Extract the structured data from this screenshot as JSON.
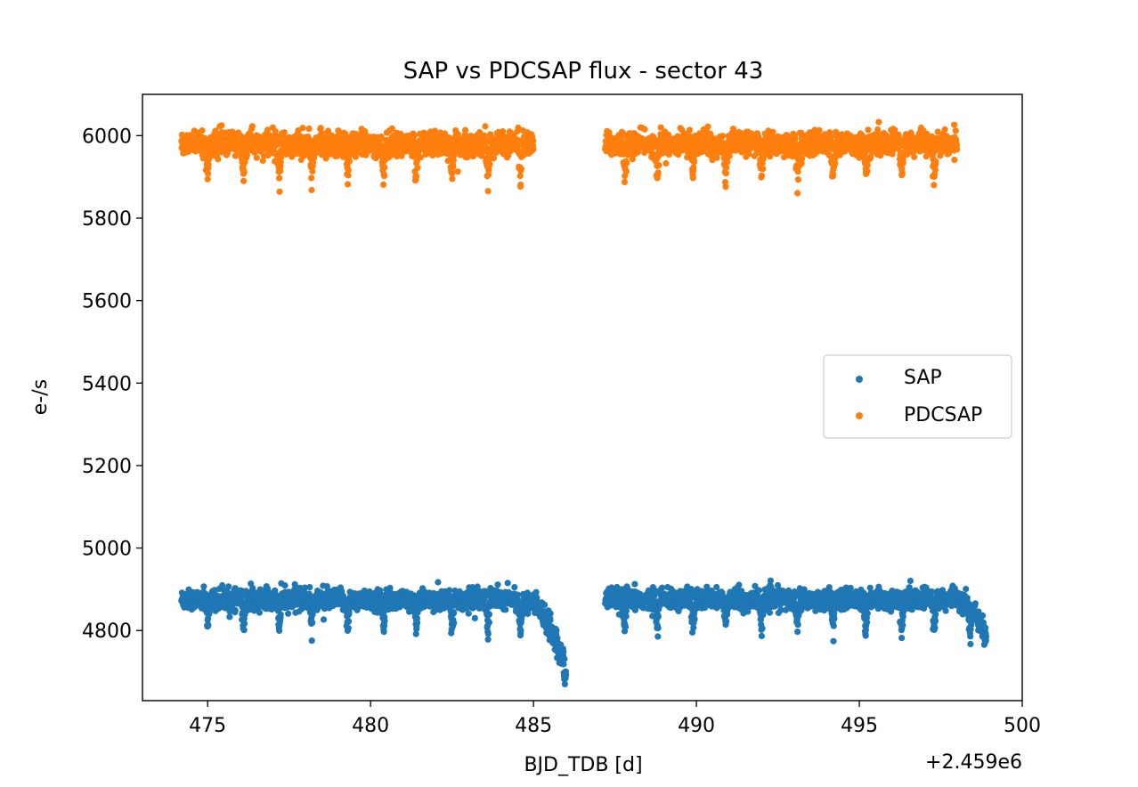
{
  "chart_data": {
    "type": "scatter",
    "title": "SAP vs PDCSAP flux - sector 43",
    "xlabel": "BJD_TDB [d]",
    "ylabel": "e-/s",
    "x_offset_label": "+2.459e6",
    "xlim": [
      473,
      500
    ],
    "ylim": [
      4630,
      6100
    ],
    "x_ticks": [
      475,
      480,
      485,
      490,
      495,
      500
    ],
    "y_ticks": [
      4800,
      5000,
      5200,
      5400,
      5600,
      5800,
      6000
    ],
    "grid": false,
    "legend_position": "center-right",
    "segments": [
      [
        474.2,
        485.0
      ],
      [
        487.2,
        498.0
      ]
    ],
    "series": [
      {
        "name": "SAP",
        "color": "#1f77b4",
        "baseline": 4875,
        "scatter": 12,
        "dip_depth": 85,
        "end_ramp": [
          {
            "segment": 0,
            "x": [
              484.6,
              486.0
            ],
            "values": [
              4870,
              4700
            ]
          },
          {
            "segment": 1,
            "x": [
              498.0,
              498.9
            ],
            "values": [
              4875,
              4780
            ]
          }
        ],
        "dip_times": [
          475.0,
          476.1,
          477.2,
          478.2,
          479.3,
          480.4,
          481.4,
          482.5,
          483.6,
          484.6,
          487.8,
          488.8,
          489.9,
          490.9,
          492.0,
          493.1,
          494.2,
          495.2,
          496.3,
          497.3,
          498.4
        ]
      },
      {
        "name": "PDCSAP",
        "color": "#ff7f0e",
        "baseline": 5980,
        "scatter": 14,
        "dip_depth": 95,
        "end_ramp": [],
        "dip_times": [
          475.0,
          476.1,
          477.2,
          478.2,
          479.3,
          480.4,
          481.4,
          482.5,
          483.6,
          484.6,
          487.8,
          488.8,
          489.9,
          490.9,
          492.0,
          493.1,
          494.2,
          495.2,
          496.3,
          497.3
        ]
      }
    ]
  }
}
